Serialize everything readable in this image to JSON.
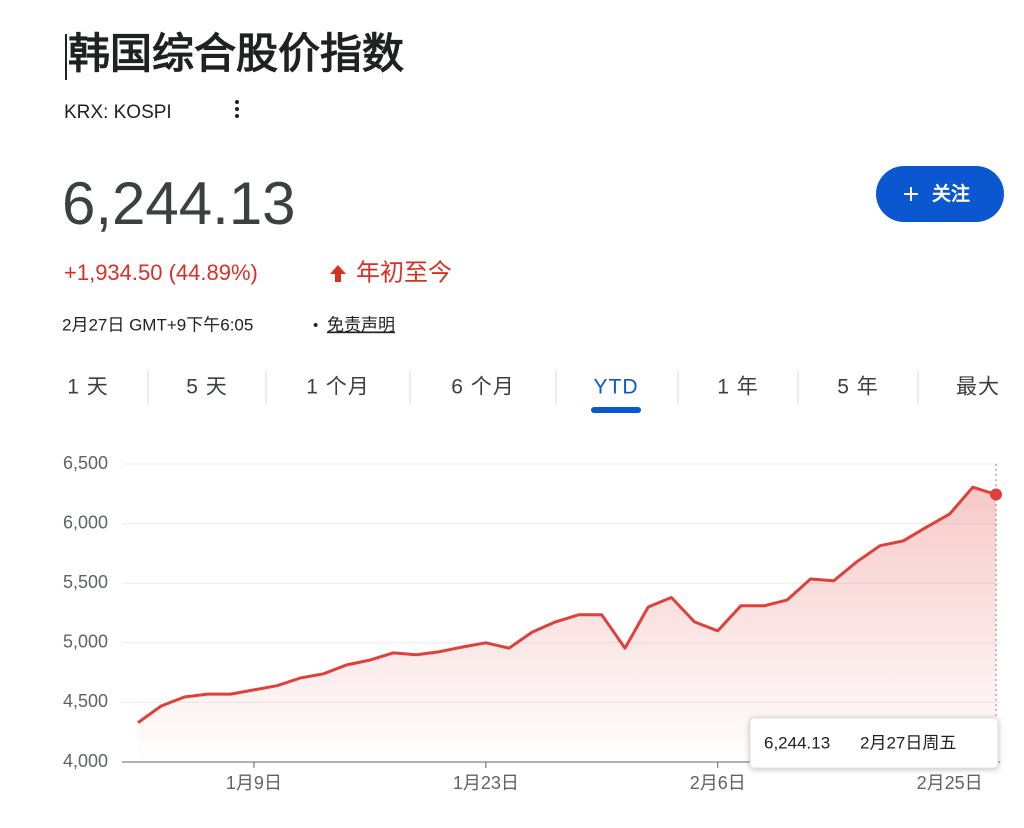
{
  "header": {
    "title": "韩国综合股价指数",
    "ticker": "KRX: KOSPI",
    "price": "6,244.13",
    "change": "+1,934.50 (44.89%)",
    "change_period": "年初至今",
    "timestamp": "2月27日 GMT+9下午6:05",
    "separator": "•",
    "disclaimer": "免责声明",
    "follow_button": "关注"
  },
  "tabs": {
    "items": [
      "1 天",
      "5 天",
      "1 个月",
      "6 个月",
      "YTD",
      "1 年",
      "5 年",
      "最大"
    ],
    "active": 4
  },
  "chart_data": {
    "type": "line",
    "categories": [
      null,
      null,
      null,
      null,
      null,
      "1月9日",
      null,
      null,
      null,
      null,
      null,
      null,
      null,
      null,
      null,
      "1月23日",
      null,
      null,
      null,
      null,
      null,
      null,
      null,
      null,
      null,
      "2月6日",
      null,
      null,
      null,
      null,
      null,
      null,
      null,
      null,
      null,
      "2月25日",
      null,
      null
    ],
    "series": [
      {
        "name": "KOSPI",
        "color": "#e0403a",
        "values": [
          4330,
          4470,
          4545,
          4570,
          4570,
          4605,
          4640,
          4705,
          4740,
          4815,
          4855,
          4915,
          4900,
          4925,
          4965,
          5000,
          4955,
          5090,
          5175,
          5235,
          5235,
          4955,
          5300,
          5380,
          5175,
          5100,
          5310,
          5310,
          5360,
          5535,
          5520,
          5680,
          5815,
          5855,
          5970,
          6080,
          6305,
          6244.13
        ]
      }
    ],
    "ylim": [
      4000,
      6500
    ],
    "yticks": [
      {
        "value": 4000,
        "label": "4,000"
      },
      {
        "value": 4500,
        "label": "4,500"
      },
      {
        "value": 5000,
        "label": "5,000"
      },
      {
        "value": 5500,
        "label": "5,500"
      },
      {
        "value": 6000,
        "label": "6,000"
      },
      {
        "value": 6500,
        "label": "6,500"
      }
    ],
    "grid": true,
    "tooltip": {
      "value": "6,244.13",
      "date": "2月27日周五"
    }
  }
}
